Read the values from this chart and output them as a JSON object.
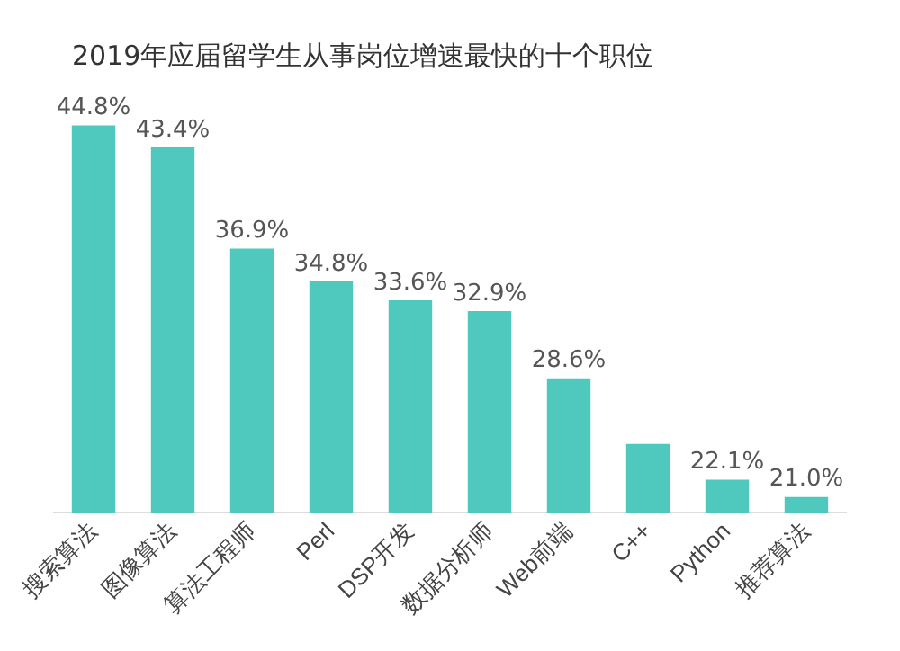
{
  "chart_data": {
    "type": "bar",
    "title": "2019年应届留学生从事岗位增速最快的十个职位",
    "categories": [
      "搜索算法",
      "图像算法",
      "算法工程师",
      "Perl",
      "DSP开发",
      "数据分析师",
      "Web前端",
      "C++",
      "Python",
      "推荐算法"
    ],
    "values": [
      44.8,
      43.4,
      36.9,
      34.8,
      33.6,
      32.9,
      28.6,
      24.4,
      22.1,
      21.0
    ],
    "value_labels": [
      "44.8%",
      "43.4%",
      "36.9%",
      "34.8%",
      "33.6%",
      "32.9%",
      "28.6%",
      null,
      "22.1%",
      "21.0%"
    ],
    "color": "#4fc9bd",
    "grid": false,
    "legend": false,
    "tick_labels": "x"
  }
}
